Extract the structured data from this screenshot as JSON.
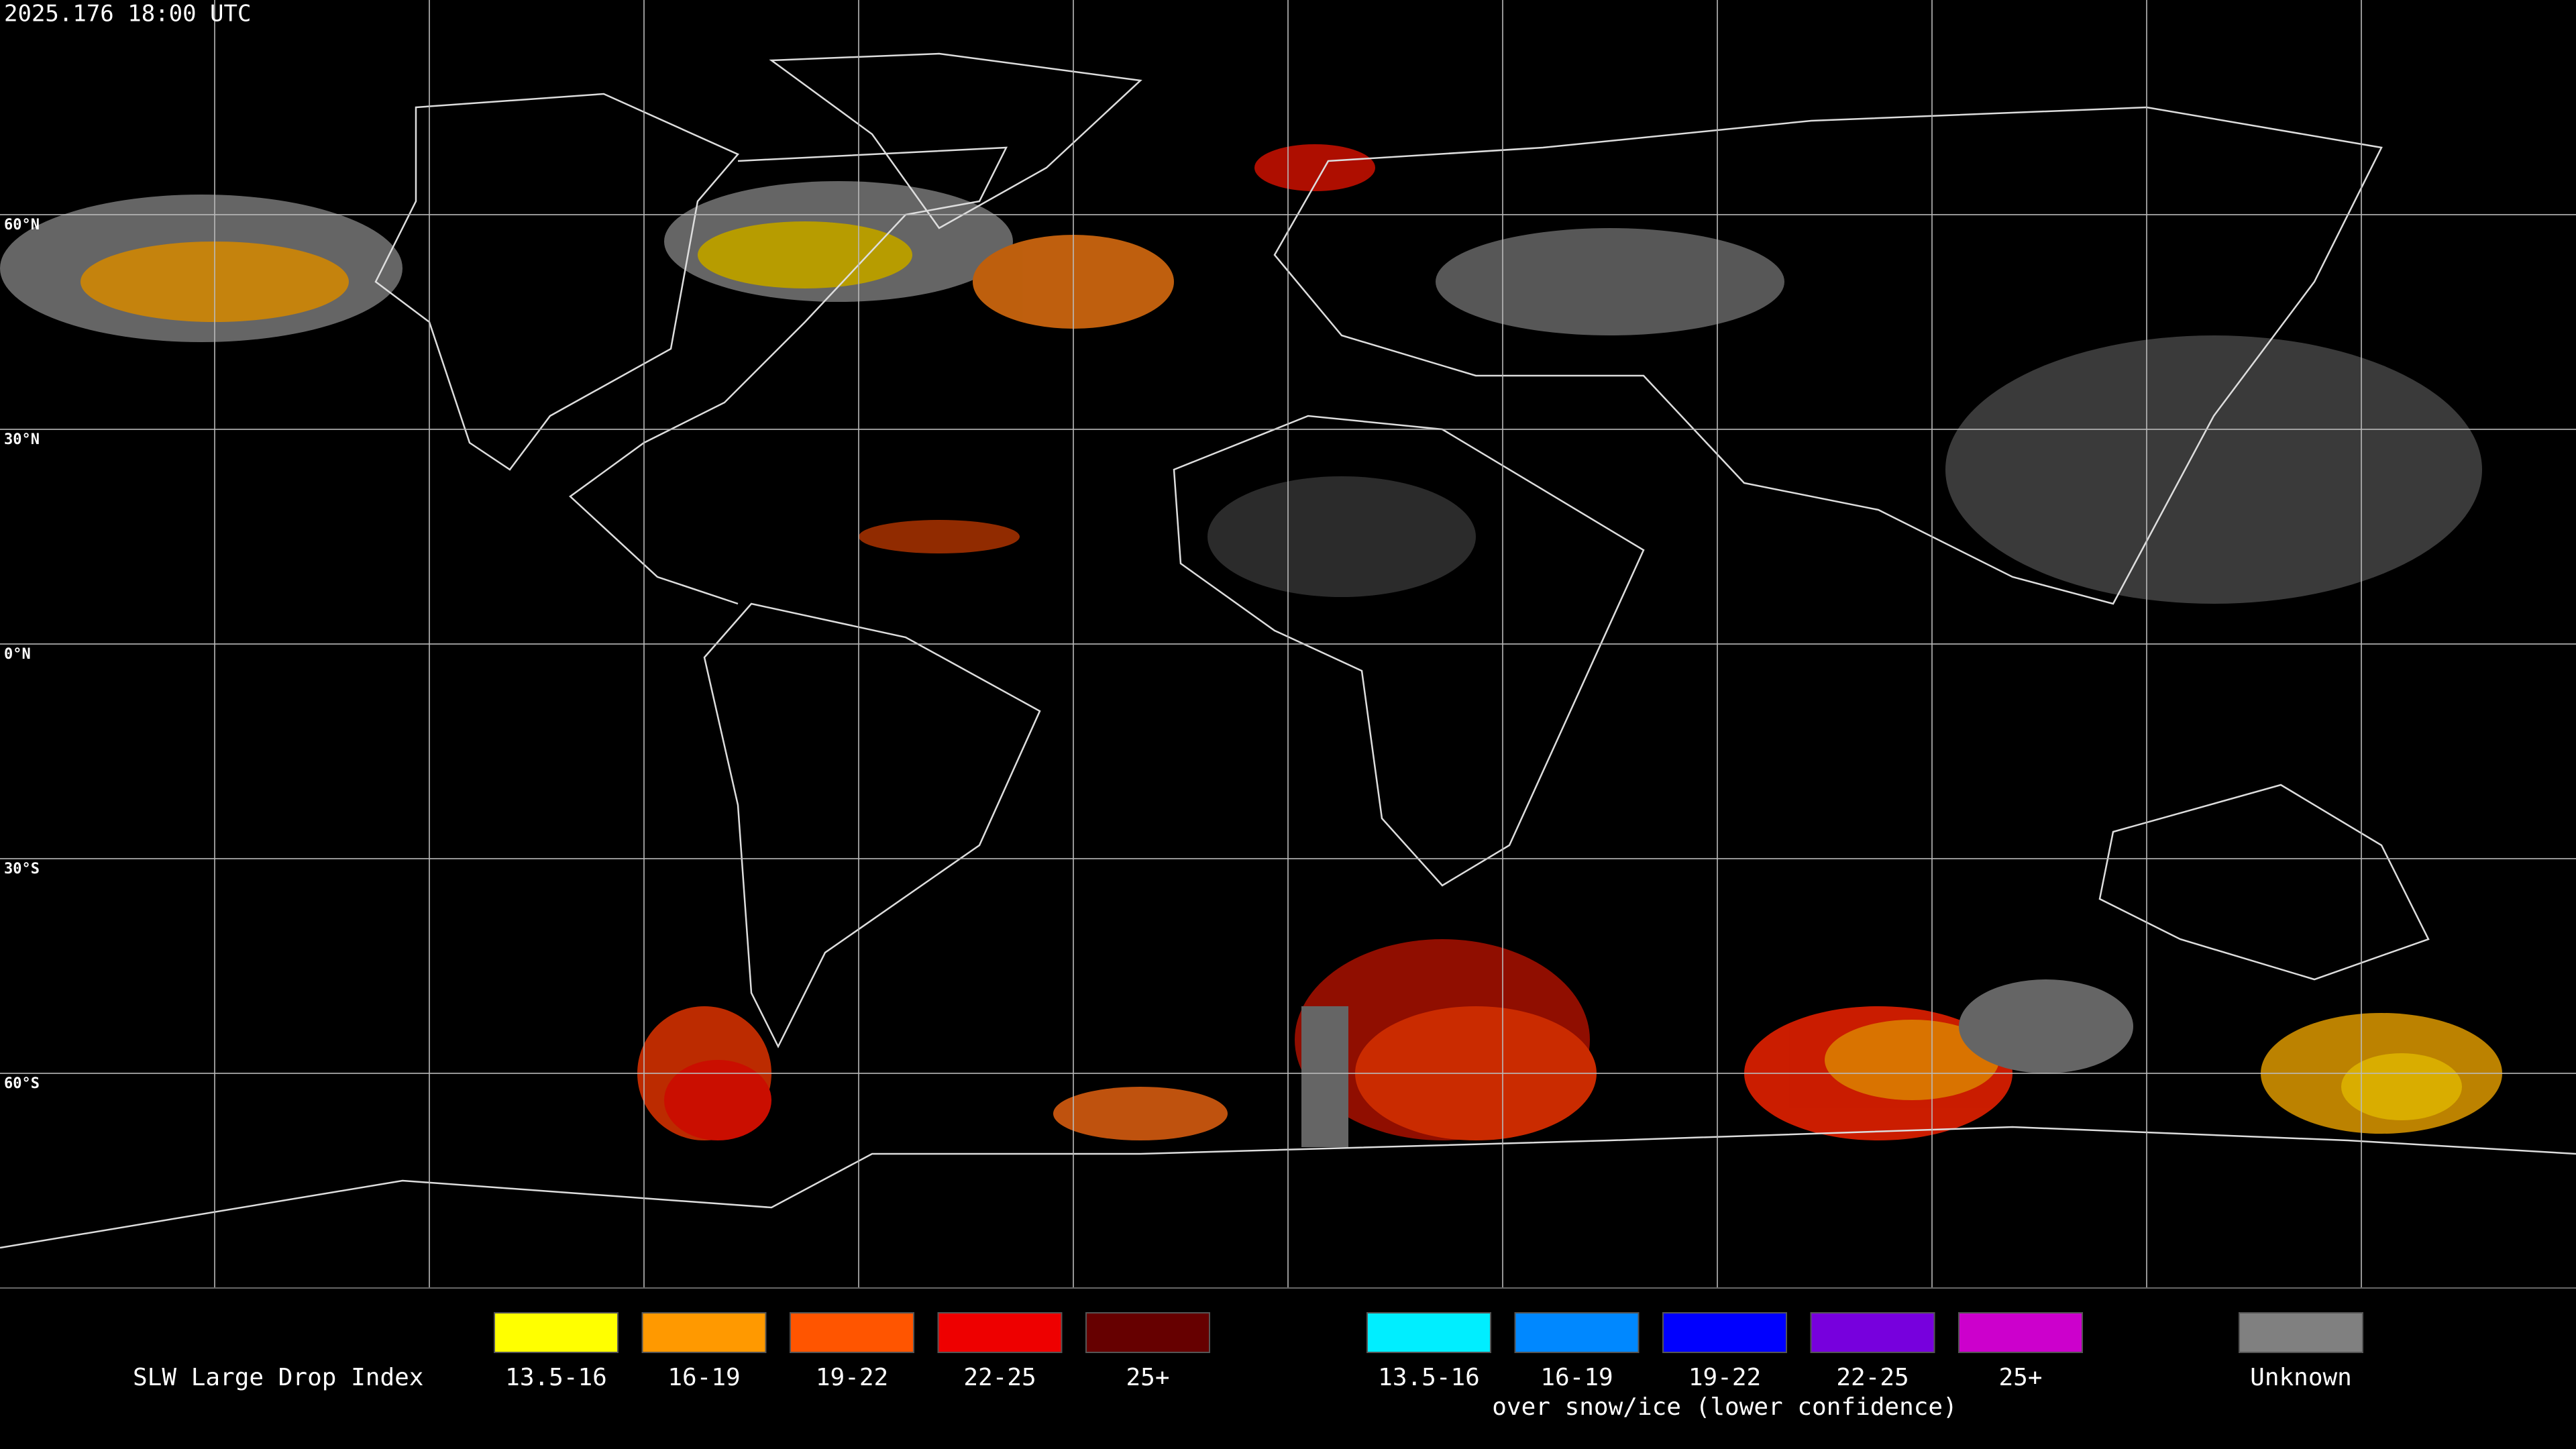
{
  "timestamp": "2025.176 18:00 UTC",
  "latitude_labels": [
    "60°N",
    "30°N",
    "0°N",
    "30°S",
    "60°S"
  ],
  "legend": {
    "title": "SLW Large Drop Index",
    "groups": [
      {
        "items": [
          {
            "label": "13.5-16",
            "color": "#ffff00"
          },
          {
            "label": "16-19",
            "color": "#ff9900"
          },
          {
            "label": "19-22",
            "color": "#ff5500"
          },
          {
            "label": "22-25",
            "color": "#ee0000"
          },
          {
            "label": "25+",
            "color": "#660000"
          }
        ]
      },
      {
        "items": [
          {
            "label": "13.5-16",
            "color": "#00eeff"
          },
          {
            "label": "16-19",
            "color": "#0088ff"
          },
          {
            "label": "19-22",
            "color": "#0000ff"
          },
          {
            "label": "22-25",
            "color": "#7700dd"
          },
          {
            "label": "25+",
            "color": "#cc00cc"
          }
        ]
      }
    ],
    "snow_ice_note": "over snow/ice (lower confidence)",
    "unknown": {
      "label": "Unknown",
      "color": "#808080"
    }
  }
}
